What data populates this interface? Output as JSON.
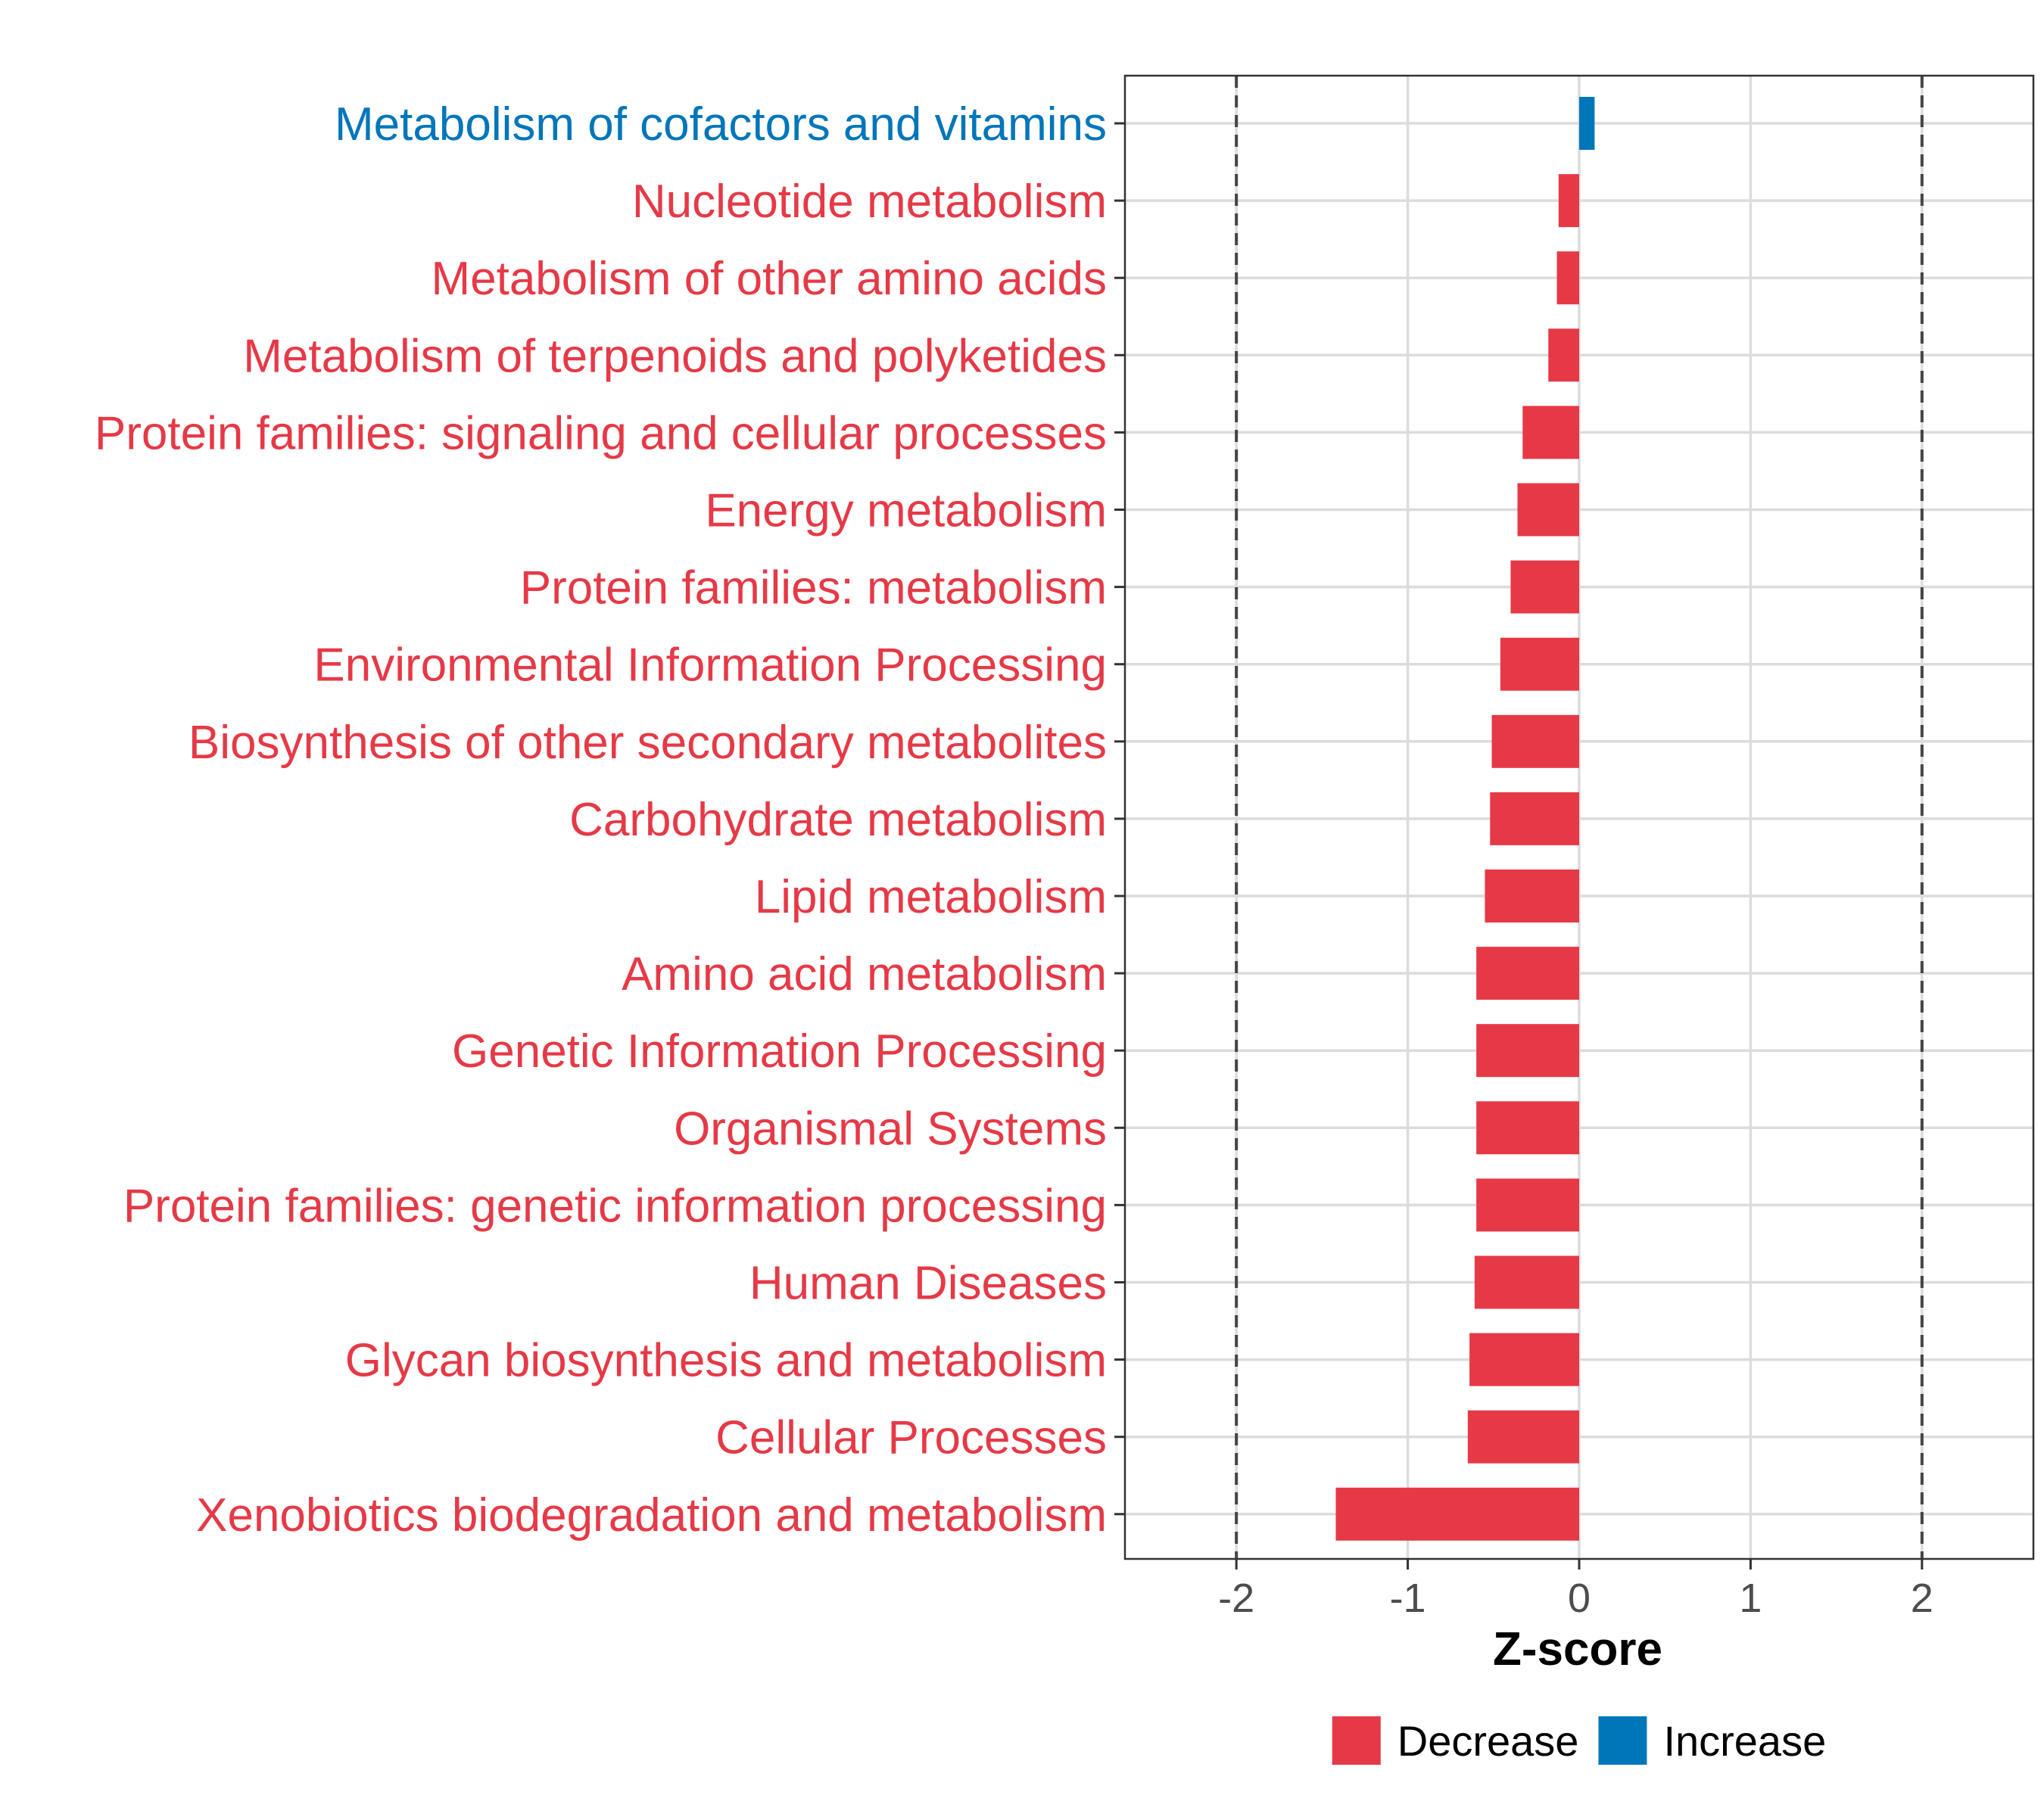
{
  "chart_data": {
    "type": "bar",
    "orientation": "horizontal",
    "xlabel": "Z-score",
    "ylabel": "",
    "xlim": [
      -2.65,
      2.65
    ],
    "x_ticks": [
      -2,
      -1,
      0,
      1,
      2
    ],
    "x_tick_labels": [
      "-2",
      "-1",
      "0",
      "1",
      "2"
    ],
    "reference_lines": [
      -2,
      2
    ],
    "grid": true,
    "categories": [
      "Metabolism of cofactors and vitamins",
      "Nucleotide metabolism",
      "Metabolism of other amino acids",
      "Metabolism of terpenoids and polyketides",
      "Protein families: signaling and cellular processes",
      "Energy metabolism",
      "Protein families: metabolism",
      "Environmental Information Processing",
      "Biosynthesis of other secondary metabolites",
      "Carbohydrate metabolism",
      "Lipid metabolism",
      "Amino acid metabolism",
      "Genetic Information Processing",
      "Organismal Systems",
      "Protein families: genetic information processing",
      "Human Diseases",
      "Glycan biosynthesis and metabolism",
      "Cellular Processes",
      "Xenobiotics biodegradation and metabolism"
    ],
    "values": [
      0.09,
      -0.12,
      -0.13,
      -0.18,
      -0.33,
      -0.36,
      -0.4,
      -0.46,
      -0.51,
      -0.52,
      -0.55,
      -0.6,
      -0.6,
      -0.6,
      -0.6,
      -0.61,
      -0.64,
      -0.65,
      -1.42
    ],
    "groups": [
      "Increase",
      "Decrease",
      "Decrease",
      "Decrease",
      "Decrease",
      "Decrease",
      "Decrease",
      "Decrease",
      "Decrease",
      "Decrease",
      "Decrease",
      "Decrease",
      "Decrease",
      "Decrease",
      "Decrease",
      "Decrease",
      "Decrease",
      "Decrease",
      "Decrease"
    ],
    "legend": {
      "placement": "bottom",
      "entries": [
        {
          "label": "Decrease",
          "color": "#E63946"
        },
        {
          "label": "Increase",
          "color": "#0076BA"
        }
      ]
    },
    "colors": {
      "Decrease": "#E63946",
      "Increase": "#0076BA"
    }
  }
}
